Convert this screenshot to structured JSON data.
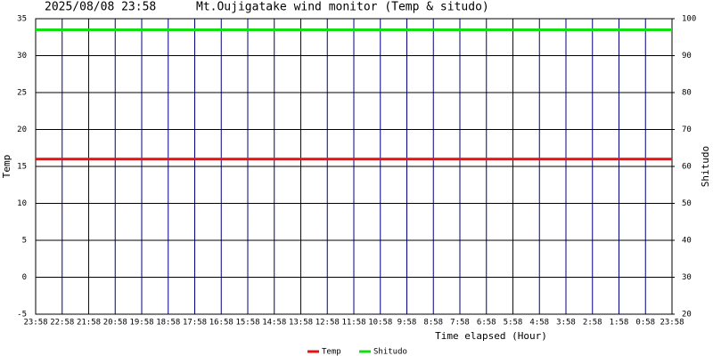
{
  "chart_data": {
    "type": "line",
    "title": "2025/08/08 23:58",
    "subtitle": "Mt.Oujigatake wind monitor (Temp & situdo)",
    "x_label": "Time elapsed (Hour)",
    "y_label": "Temp",
    "y2_label": "Shitudo",
    "categories": [
      "23:58",
      "22:58",
      "21:58",
      "20:58",
      "19:58",
      "18:58",
      "17:58",
      "16:58",
      "15:58",
      "14:58",
      "13:58",
      "12:58",
      "11:58",
      "10:58",
      "9:58",
      "8:58",
      "7:58",
      "6:58",
      "5:58",
      "4:58",
      "3:58",
      "2:58",
      "1:58",
      "0:58",
      "23:58"
    ],
    "series": [
      {
        "name": "Temp",
        "color": "#e81010",
        "values": [
          16,
          16,
          16,
          16,
          16,
          16,
          16,
          16,
          16,
          16,
          16,
          16,
          16,
          16,
          16,
          16,
          16,
          16,
          16,
          16,
          16,
          16,
          16,
          16,
          16
        ]
      },
      {
        "name": "Shitudo",
        "color": "#10e010",
        "axis": "y2",
        "values": [
          97,
          97,
          97,
          97,
          97,
          97,
          97,
          97,
          97,
          97,
          97,
          97,
          97,
          97,
          97,
          97,
          97,
          97,
          97,
          97,
          97,
          97,
          97,
          97,
          97
        ]
      }
    ],
    "ylim": [
      -5,
      35
    ],
    "yticks": [
      -5,
      0,
      5,
      10,
      15,
      20,
      25,
      30,
      35
    ],
    "y2lim": [
      20,
      100
    ],
    "y2ticks": [
      20,
      30,
      40,
      50,
      60,
      70,
      80,
      90,
      100
    ],
    "grid": true
  }
}
